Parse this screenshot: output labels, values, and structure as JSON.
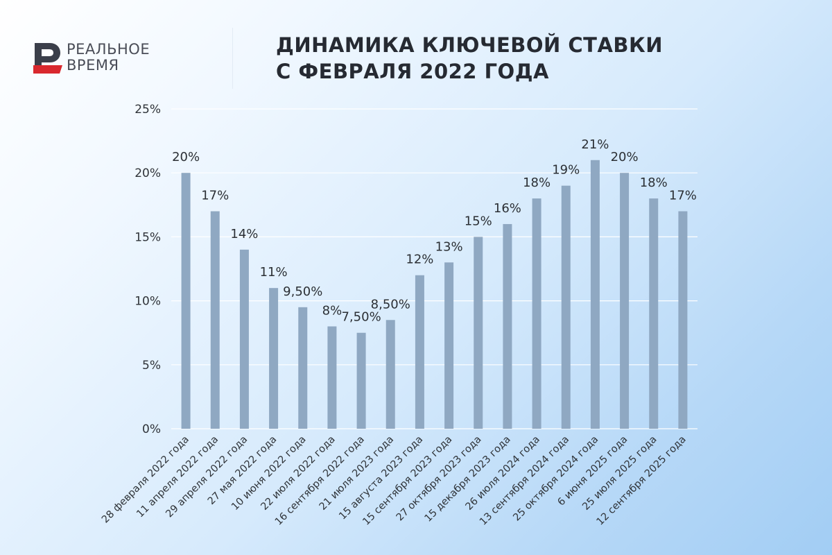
{
  "brand": {
    "line1": "РЕАЛЬНОЕ",
    "line2": "ВРЕМЯ"
  },
  "header": {
    "title_line1": "ДИНАМИКА КЛЮЧЕВОЙ СТАВКИ",
    "title_line2": "С ФЕВРАЛЯ 2022 ГОДА"
  },
  "colors": {
    "bar": "#8fa8c2",
    "logo_red": "#d9282e",
    "logo_dark": "#3b3f4a"
  },
  "chart_data": {
    "type": "bar",
    "title": "ДИНАМИКА КЛЮЧЕВОЙ СТАВКИ С ФЕВРАЛЯ 2022 ГОДА",
    "xlabel": "",
    "ylabel": "",
    "categories": [
      "28 февраля 2022 года",
      "11 апреля 2022 года",
      "29 апреля 2022 года",
      "27 мая 2022 года",
      "10 июня 2022 года",
      "22 июля 2022 года",
      "16 сентября 2022 года",
      "21 июля 2023 года",
      "15 августа 2023 года",
      "15 сентября 2023 года",
      "27 октября 2023 года",
      "15 декабря 2023 года",
      "26 июля 2024 года",
      "13 сентября 2024 года",
      "25 октября 2024 года",
      "6 июня 2025 года",
      "25 июля 2025 года",
      "12 сентября 2025 года"
    ],
    "values": [
      20,
      17,
      14,
      11,
      9.5,
      8,
      7.5,
      8.5,
      12,
      13,
      15,
      16,
      18,
      19,
      21,
      20,
      18,
      17
    ],
    "data_labels": [
      "20%",
      "17%",
      "14%",
      "11%",
      "9,50%",
      "8%",
      "7,50%",
      "8,50%",
      "12%",
      "13%",
      "15%",
      "16%",
      "18%",
      "19%",
      "21%",
      "20%",
      "18%",
      "17%"
    ],
    "ylim": [
      0,
      25
    ],
    "yticks": [
      0,
      5,
      10,
      15,
      20,
      25
    ],
    "ytick_labels": [
      "0%",
      "5%",
      "10%",
      "15%",
      "20%",
      "25%"
    ],
    "grid": true,
    "legend": "none"
  }
}
